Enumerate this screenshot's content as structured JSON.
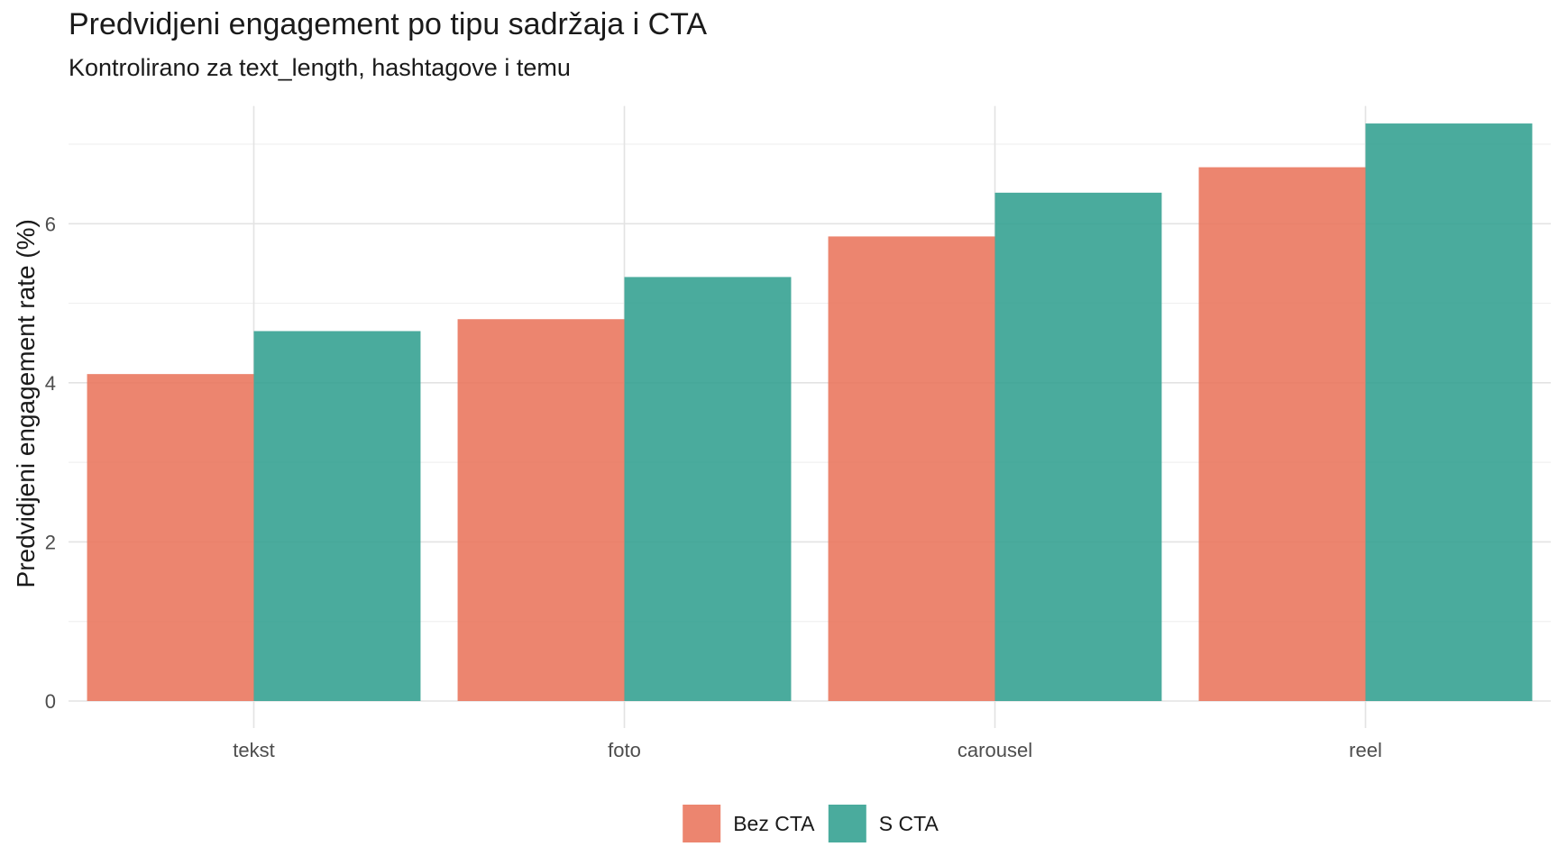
{
  "chart_data": {
    "type": "bar",
    "title": "Predvidjeni engagement po tipu sadržaja i CTA",
    "subtitle": "Kontrolirano za text_length, hashtagove i temu",
    "xlabel": "",
    "ylabel": "Predvidjeni engagement rate (%)",
    "categories": [
      "tekst",
      "foto",
      "carousel",
      "reel"
    ],
    "series": [
      {
        "name": "Bez CTA",
        "color": "#E9735A",
        "values": [
          4.11,
          4.8,
          5.84,
          6.71
        ]
      },
      {
        "name": "S CTA",
        "color": "#2F9E8F",
        "values": [
          4.65,
          5.33,
          6.39,
          7.26
        ]
      }
    ],
    "ylim": [
      0,
      7.3
    ],
    "yticks": [
      0,
      2,
      4,
      6
    ],
    "grid": true,
    "legend_position": "bottom",
    "bar_opacity": 0.87
  }
}
